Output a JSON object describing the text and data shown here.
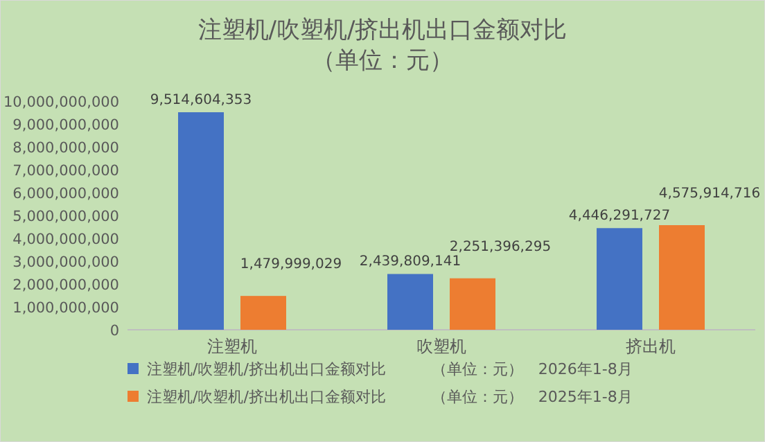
{
  "chart_data": {
    "type": "bar",
    "title": "注塑机/吹塑机/挤出机出口金额对比",
    "subtitle": "（单位：元）",
    "categories": [
      "注塑机",
      "吹塑机",
      "挤出机"
    ],
    "series": [
      {
        "name": "注塑机/吹塑机/挤出机出口金额对比　　　（单位：元）　2026年1-8月",
        "color": "#4472c4",
        "values": [
          9514604353,
          2439809141,
          4446291727
        ],
        "value_labels": [
          "9,514,604,353",
          "2,439,809,141",
          "4,446,291,727"
        ]
      },
      {
        "name": "注塑机/吹塑机/挤出机出口金额对比　　　（单位：元）　2025年1-8月",
        "color": "#ed7d31",
        "values": [
          1479999029,
          2251396295,
          4575914716
        ],
        "value_labels": [
          "1,479,999,029",
          "2,251,396,295",
          "4,575,914,716"
        ]
      }
    ],
    "ylim": [
      0,
      10000000000
    ],
    "yticks": [
      {
        "value": 0,
        "label": "0"
      },
      {
        "value": 1000000000,
        "label": "1,000,000,000"
      },
      {
        "value": 2000000000,
        "label": "2,000,000,000"
      },
      {
        "value": 3000000000,
        "label": "3,000,000,000"
      },
      {
        "value": 4000000000,
        "label": "4,000,000,000"
      },
      {
        "value": 5000000000,
        "label": "5,000,000,000"
      },
      {
        "value": 6000000000,
        "label": "6,000,000,000"
      },
      {
        "value": 7000000000,
        "label": "7,000,000,000"
      },
      {
        "value": 8000000000,
        "label": "8,000,000,000"
      },
      {
        "value": 9000000000,
        "label": "9,000,000,000"
      },
      {
        "value": 10000000000,
        "label": "10,000,000,000"
      }
    ],
    "grid": false,
    "legend": "bottom"
  }
}
